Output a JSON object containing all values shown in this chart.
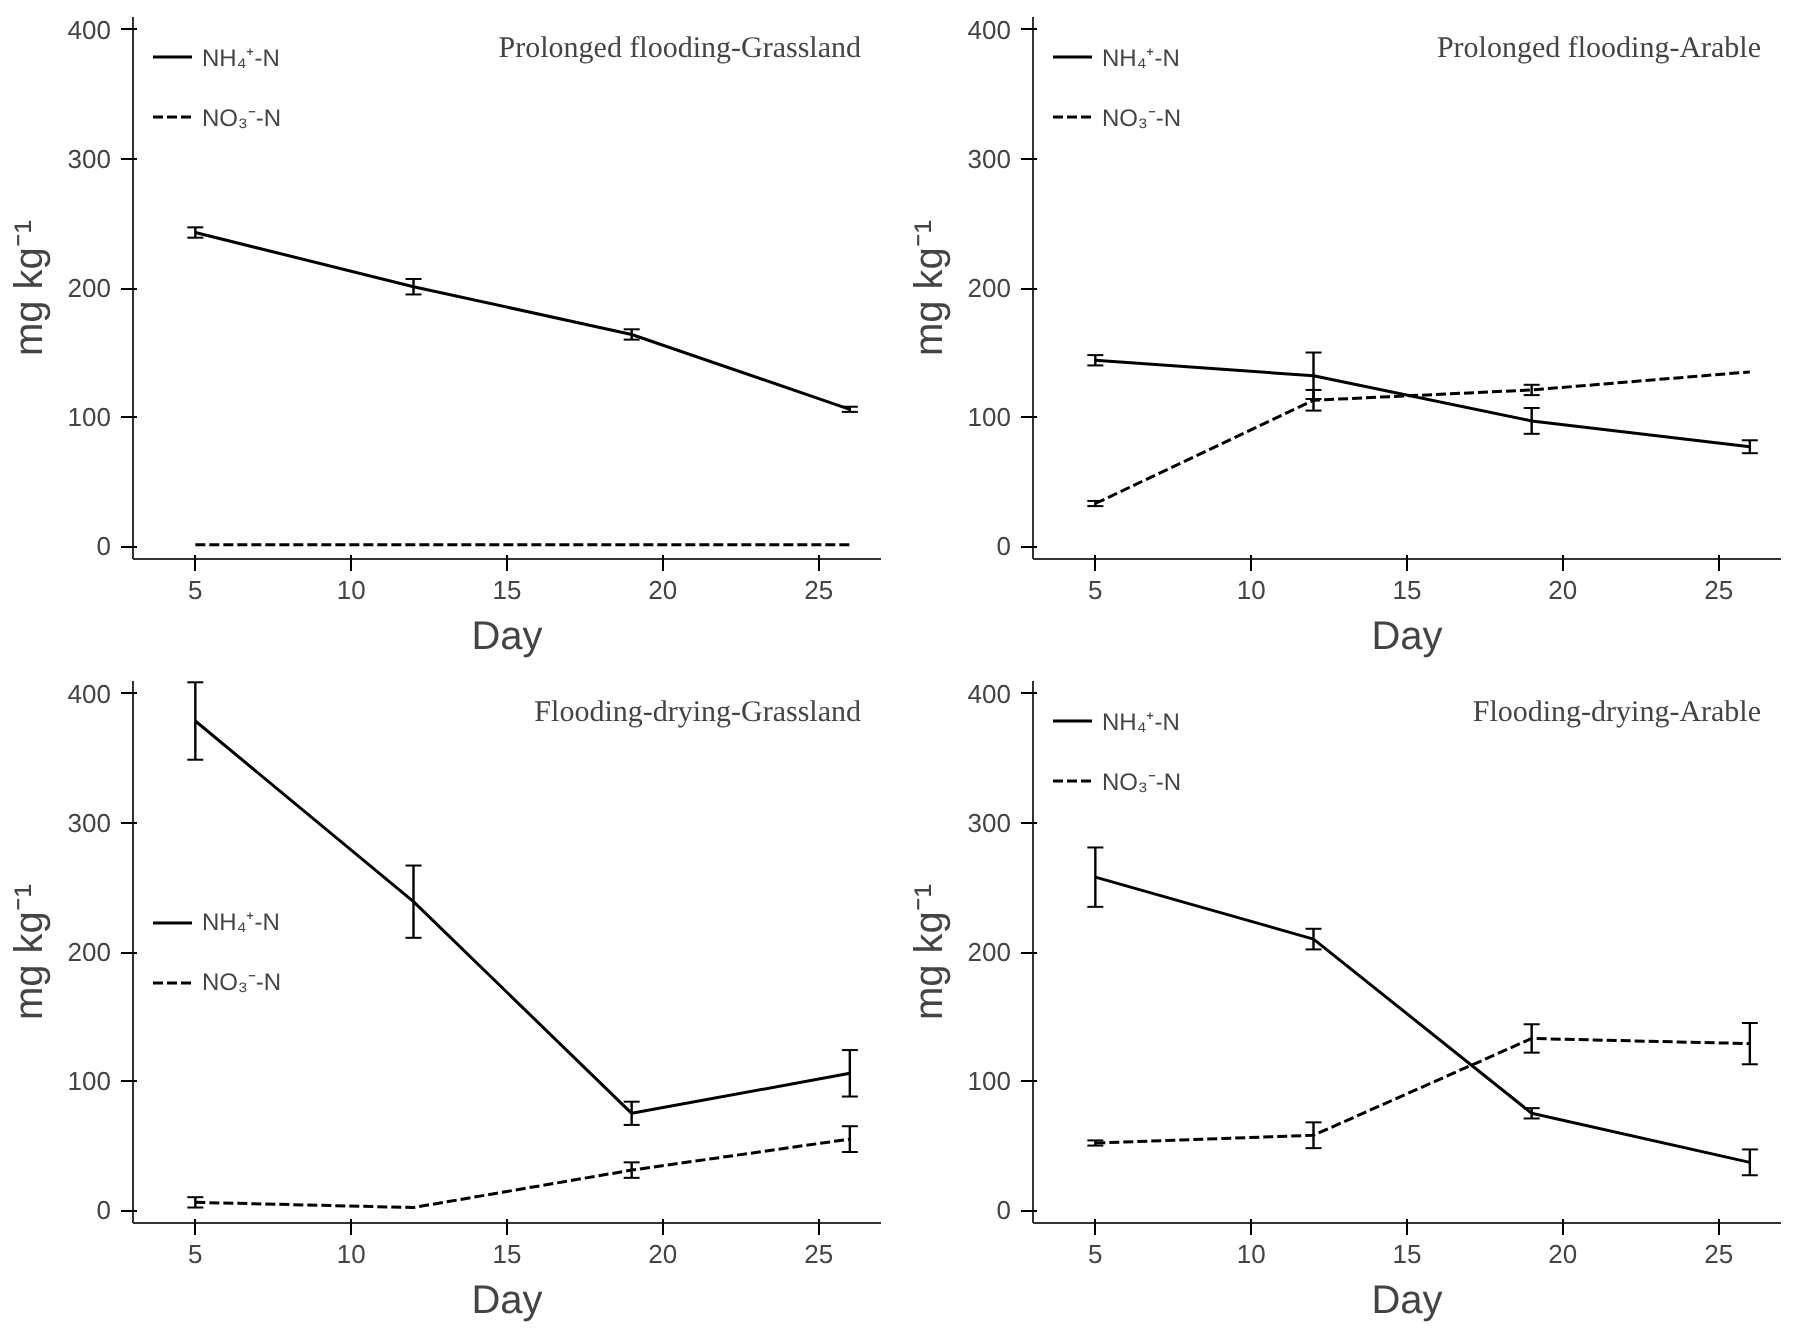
{
  "chart_data": [
    {
      "type": "line",
      "title": "Prolonged flooding-Grassland",
      "xlabel": "Day",
      "ylabel": "mg kg⁻¹",
      "x": [
        5,
        12,
        19,
        26
      ],
      "xlim": [
        3,
        27
      ],
      "ylim": [
        -10,
        410
      ],
      "xticks": [
        5,
        10,
        15,
        20,
        25
      ],
      "yticks": [
        0,
        100,
        200,
        300,
        400
      ],
      "grid": false,
      "legend": "top left",
      "series": [
        {
          "name": "NH₄⁺-N",
          "color": "#000000",
          "line_style": "solid",
          "values": [
            243,
            201,
            164,
            106
          ],
          "errors": [
            4,
            6,
            4,
            2
          ]
        },
        {
          "name": "NO₃⁻-N",
          "color": "#000000",
          "line_style": "dashed",
          "values": [
            1,
            1,
            1,
            1
          ]
        }
      ]
    },
    {
      "type": "line",
      "title": "Prolonged flooding-Arable",
      "xlabel": "Day",
      "ylabel": "mg kg⁻¹",
      "x": [
        5,
        12,
        19,
        26
      ],
      "xlim": [
        3,
        27
      ],
      "ylim": [
        -10,
        410
      ],
      "xticks": [
        5,
        10,
        15,
        20,
        25
      ],
      "yticks": [
        0,
        100,
        200,
        300,
        400
      ],
      "grid": false,
      "legend": "top left",
      "series": [
        {
          "name": "NH₄⁺-N",
          "color": "#000000",
          "line_style": "solid",
          "values": [
            144,
            132,
            97,
            77
          ],
          "errors": [
            4,
            18,
            10,
            5
          ]
        },
        {
          "name": "NO₃⁻-N",
          "color": "#000000",
          "line_style": "dashed",
          "values": [
            33,
            113,
            121,
            135
          ],
          "errors": [
            2,
            8,
            4,
            null
          ]
        }
      ]
    },
    {
      "type": "line",
      "title": "Flooding-drying-Grassland",
      "xlabel": "Day",
      "ylabel": "mg kg⁻¹",
      "x": [
        5,
        12,
        19,
        26
      ],
      "xlim": [
        3,
        27
      ],
      "ylim": [
        -10,
        410
      ],
      "xticks": [
        5,
        10,
        15,
        20,
        25
      ],
      "yticks": [
        0,
        100,
        200,
        300,
        400
      ],
      "grid": false,
      "legend": "left",
      "series": [
        {
          "name": "NH₄⁺-N",
          "color": "#000000",
          "line_style": "solid",
          "values": [
            379,
            239,
            75,
            106
          ],
          "errors": [
            30,
            28,
            9,
            18
          ]
        },
        {
          "name": "NO₃⁻-N",
          "color": "#000000",
          "line_style": "dashed",
          "values": [
            6,
            2,
            31,
            55
          ],
          "errors": [
            4,
            null,
            6,
            10
          ]
        }
      ]
    },
    {
      "type": "line",
      "title": "Flooding-drying-Arable",
      "xlabel": "Day",
      "ylabel": "mg kg⁻¹",
      "x": [
        5,
        12,
        19,
        26
      ],
      "xlim": [
        3,
        27
      ],
      "ylim": [
        -10,
        410
      ],
      "xticks": [
        5,
        10,
        15,
        20,
        25
      ],
      "yticks": [
        0,
        100,
        200,
        300,
        400
      ],
      "grid": false,
      "legend": "top left",
      "series": [
        {
          "name": "NH₄⁺-N",
          "color": "#000000",
          "line_style": "solid",
          "values": [
            258,
            210,
            75,
            37
          ],
          "errors": [
            23,
            8,
            4,
            10
          ]
        },
        {
          "name": "NO₃⁻-N",
          "color": "#000000",
          "line_style": "dashed",
          "values": [
            52,
            58,
            133,
            129
          ],
          "errors": [
            2,
            10,
            11,
            16
          ]
        }
      ]
    }
  ]
}
